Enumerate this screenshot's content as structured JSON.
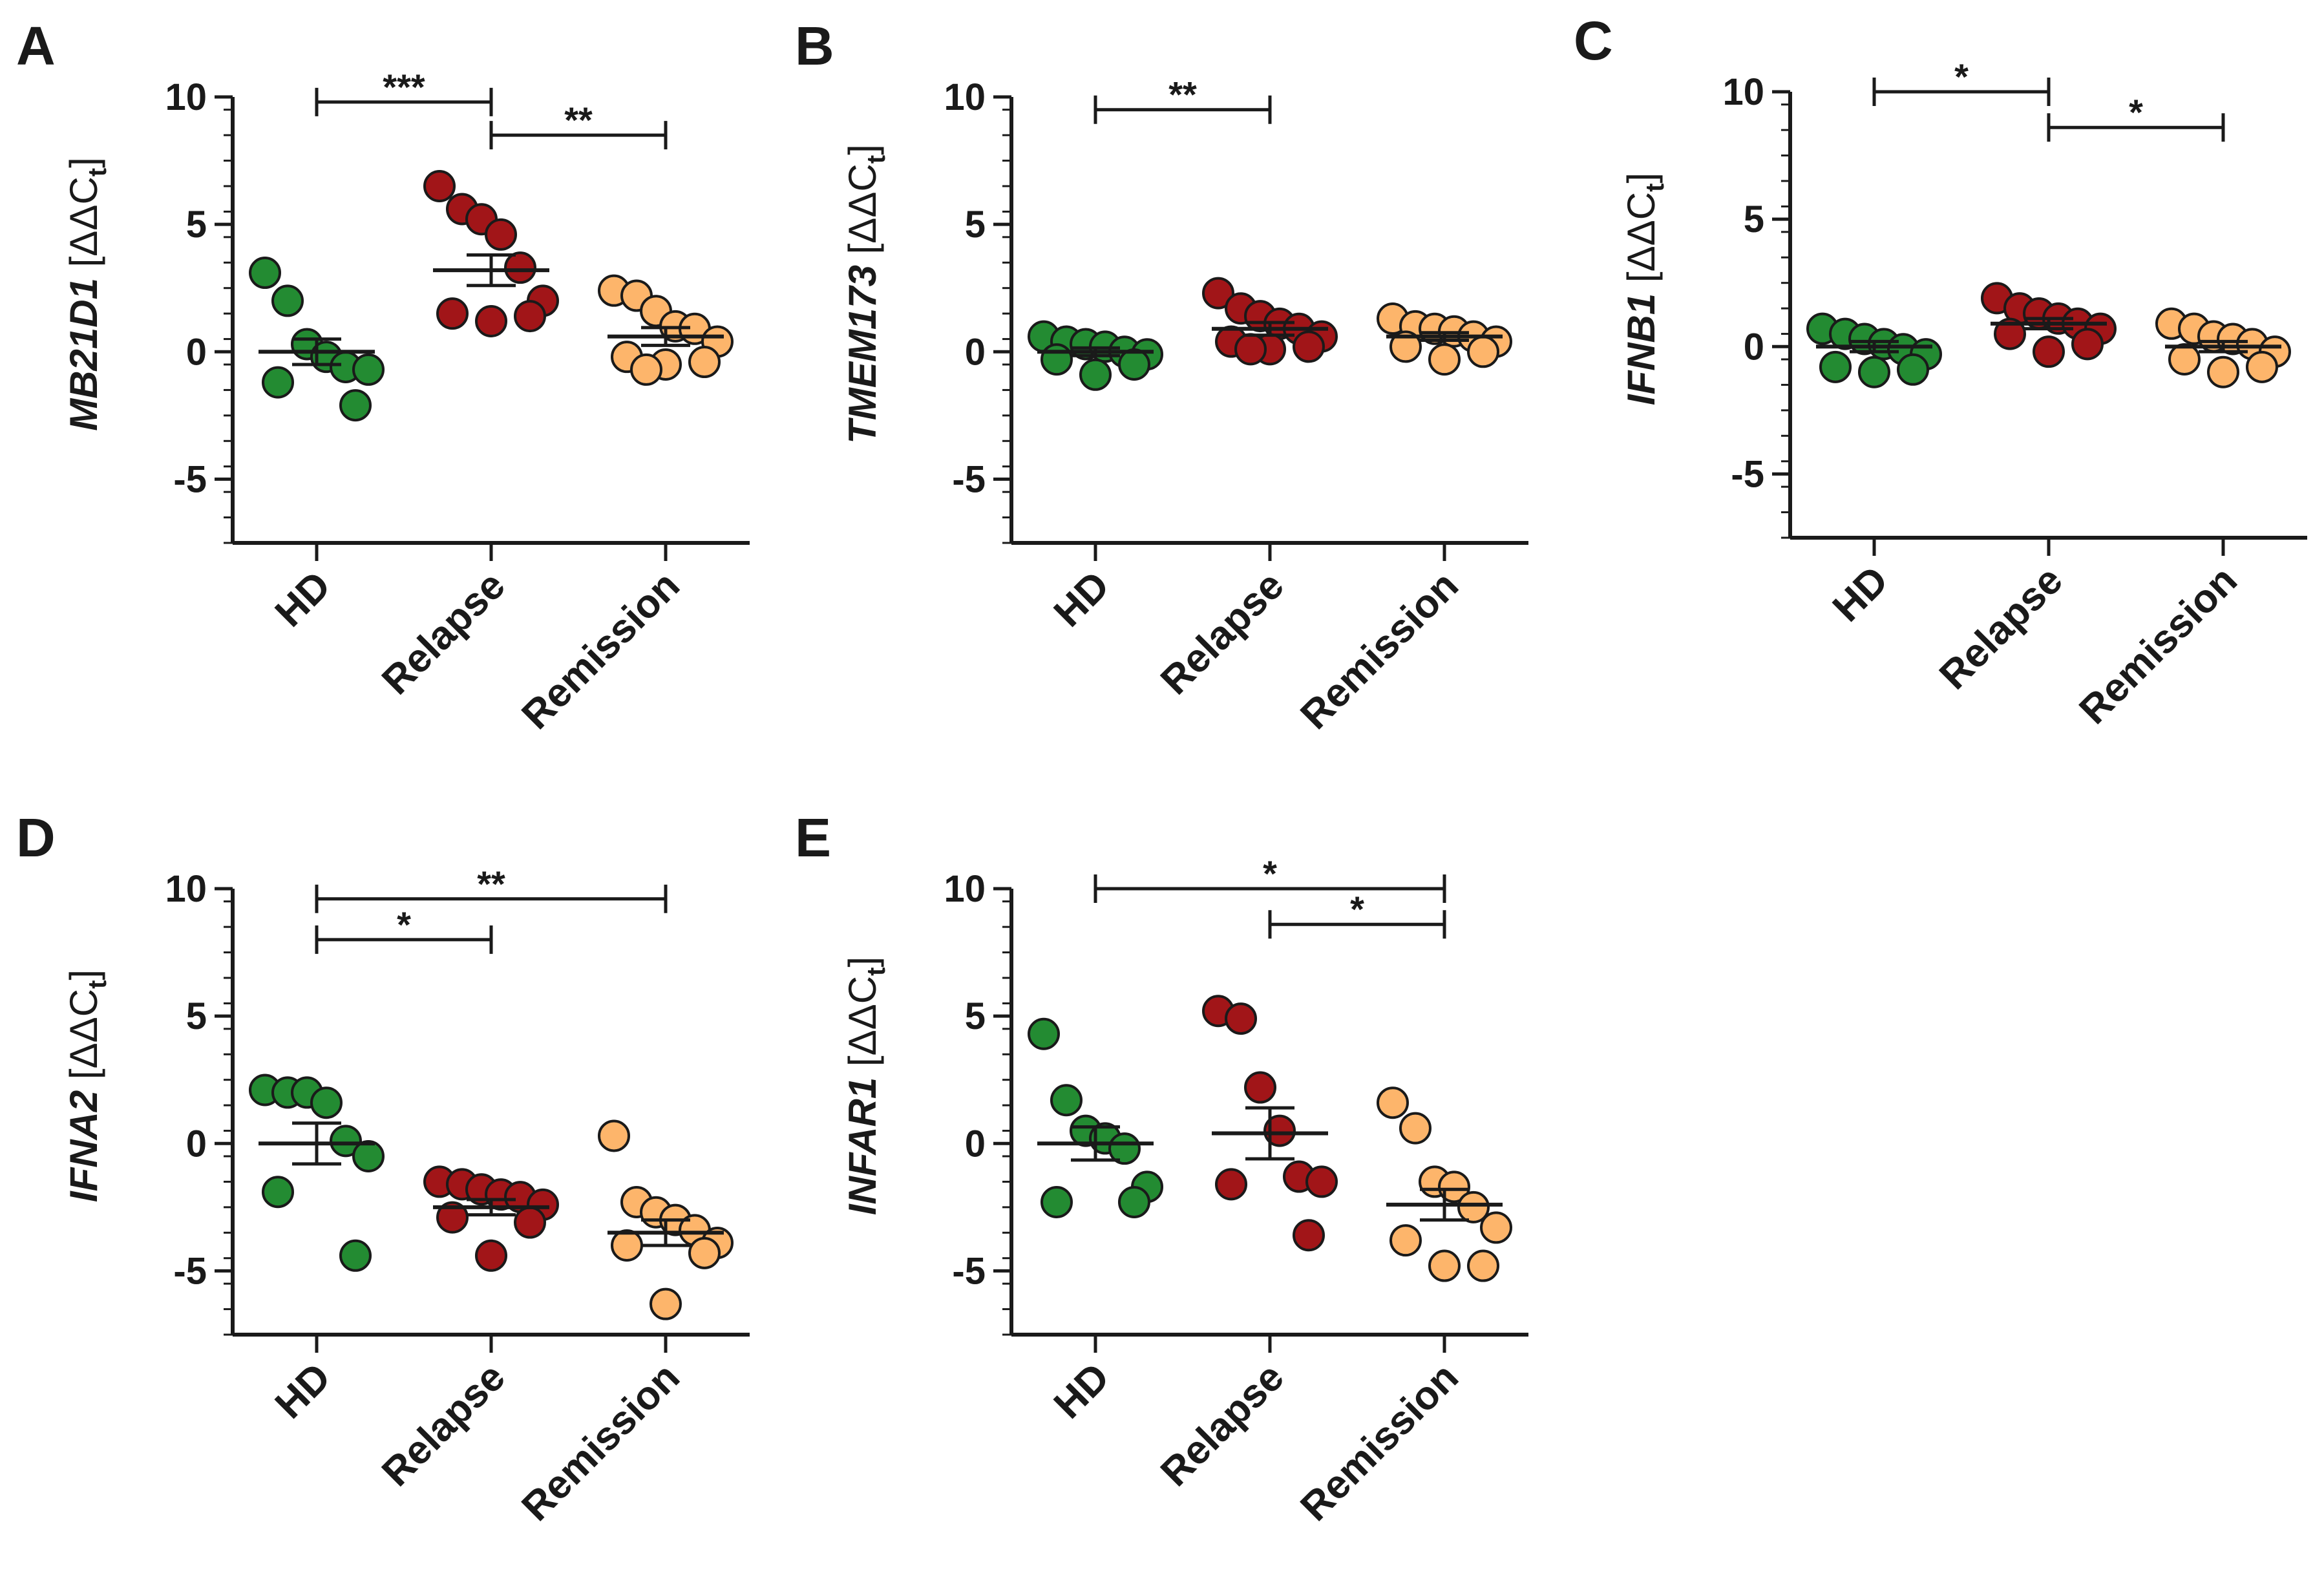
{
  "colors": {
    "HD": "#238b32",
    "Relapse": "#a11518",
    "Remission": "#fdb56b",
    "axis": "#1a1a1a"
  },
  "chart_data": [
    {
      "type": "scatter",
      "panel": "A",
      "ylabel": "MB21D1",
      "ylabel_unit_prefix": "[",
      "ylabel_unit_symbol": "ΔΔC",
      "ylabel_unit_sub": "t",
      "ylabel_unit_suffix": "]",
      "categories": [
        "HD",
        "Relapse",
        "Remission"
      ],
      "ylim": [
        -7.5,
        10
      ],
      "yticks": [
        -5,
        0,
        5,
        10
      ],
      "series": [
        {
          "name": "HD",
          "values": [
            3.1,
            2.0,
            0.3,
            -0.2,
            -0.6,
            -0.7,
            -1.2,
            -2.1
          ],
          "mean": 0.0,
          "sem": 0.5
        },
        {
          "name": "Relapse",
          "values": [
            6.5,
            5.6,
            5.2,
            4.6,
            3.3,
            2.0,
            1.5,
            1.4,
            1.2
          ],
          "mean": 3.2,
          "sem": 0.6
        },
        {
          "name": "Remission",
          "values": [
            2.4,
            2.2,
            1.6,
            1.0,
            0.9,
            0.4,
            -0.2,
            -0.4,
            -0.5,
            -0.7
          ],
          "mean": 0.6,
          "sem": 0.35
        }
      ],
      "significance": [
        {
          "from": 0,
          "to": 1,
          "y": 9.8,
          "label": "***"
        },
        {
          "from": 1,
          "to": 2,
          "y": 8.5,
          "label": "**"
        }
      ]
    },
    {
      "type": "scatter",
      "panel": "B",
      "ylabel": "TMEM173",
      "ylabel_unit_prefix": "[",
      "ylabel_unit_symbol": "ΔΔC",
      "ylabel_unit_sub": "t",
      "ylabel_unit_suffix": "]",
      "categories": [
        "HD",
        "Relapse",
        "Remission"
      ],
      "ylim": [
        -7.5,
        10
      ],
      "yticks": [
        -5,
        0,
        5,
        10
      ],
      "series": [
        {
          "name": "HD",
          "values": [
            0.6,
            0.4,
            0.3,
            0.2,
            0.0,
            -0.1,
            -0.3,
            -0.5,
            -0.9
          ],
          "mean": 0.0,
          "sem": 0.15
        },
        {
          "name": "Relapse",
          "values": [
            2.3,
            1.7,
            1.4,
            1.1,
            0.9,
            0.6,
            0.4,
            0.2,
            0.1,
            0.1
          ],
          "mean": 0.9,
          "sem": 0.25
        },
        {
          "name": "Remission",
          "values": [
            1.3,
            1.0,
            0.9,
            0.8,
            0.6,
            0.4,
            0.2,
            0.0,
            -0.3
          ],
          "mean": 0.6,
          "sem": 0.15
        }
      ],
      "significance": [
        {
          "from": 0,
          "to": 1,
          "y": 9.5,
          "label": "**"
        }
      ]
    },
    {
      "type": "scatter",
      "panel": "C",
      "ylabel": "IFNB1",
      "ylabel_unit_prefix": "[",
      "ylabel_unit_symbol": "ΔΔC",
      "ylabel_unit_sub": "t",
      "ylabel_unit_suffix": "]",
      "categories": [
        "HD",
        "Relapse",
        "Remission"
      ],
      "ylim": [
        -7.5,
        10
      ],
      "yticks": [
        -5,
        0,
        5,
        10
      ],
      "series": [
        {
          "name": "HD",
          "values": [
            0.7,
            0.5,
            0.3,
            0.1,
            -0.1,
            -0.3,
            -0.8,
            -0.9,
            -1.0
          ],
          "mean": 0.0,
          "sem": 0.2
        },
        {
          "name": "Relapse",
          "values": [
            1.9,
            1.5,
            1.3,
            1.1,
            0.9,
            0.7,
            0.5,
            0.1,
            -0.2
          ],
          "mean": 0.9,
          "sem": 0.2
        },
        {
          "name": "Remission",
          "values": [
            0.9,
            0.7,
            0.4,
            0.3,
            0.1,
            -0.2,
            -0.5,
            -0.8,
            -1.0
          ],
          "mean": 0.0,
          "sem": 0.2
        }
      ],
      "significance": [
        {
          "from": 0,
          "to": 1,
          "y": 10.0,
          "label": "*"
        },
        {
          "from": 1,
          "to": 2,
          "y": 8.6,
          "label": "*"
        }
      ]
    },
    {
      "type": "scatter",
      "panel": "D",
      "ylabel": "IFNA2",
      "ylabel_unit_prefix": "[",
      "ylabel_unit_symbol": "ΔΔC",
      "ylabel_unit_sub": "t",
      "ylabel_unit_suffix": "]",
      "categories": [
        "HD",
        "Relapse",
        "Remission"
      ],
      "ylim": [
        -7.5,
        10
      ],
      "yticks": [
        -5,
        0,
        5,
        10
      ],
      "series": [
        {
          "name": "HD",
          "values": [
            2.1,
            2.0,
            2.0,
            1.6,
            0.1,
            -0.5,
            -1.9,
            -4.4
          ],
          "mean": 0.0,
          "sem": 0.8
        },
        {
          "name": "Relapse",
          "values": [
            -1.5,
            -1.6,
            -1.8,
            -2.0,
            -2.1,
            -2.4,
            -2.9,
            -3.1,
            -4.4
          ],
          "mean": -2.5,
          "sem": 0.3
        },
        {
          "name": "Remission",
          "values": [
            0.3,
            -2.3,
            -2.7,
            -3.0,
            -3.4,
            -3.9,
            -4.0,
            -4.3,
            -6.3
          ],
          "mean": -3.5,
          "sem": 0.5
        }
      ],
      "significance": [
        {
          "from": 0,
          "to": 2,
          "y": 9.6,
          "label": "**"
        },
        {
          "from": 0,
          "to": 1,
          "y": 8.0,
          "label": "*"
        }
      ]
    },
    {
      "type": "scatter",
      "panel": "E",
      "ylabel": "INFAR1",
      "ylabel_unit_prefix": "[",
      "ylabel_unit_symbol": "ΔΔC",
      "ylabel_unit_sub": "t",
      "ylabel_unit_suffix": "]",
      "categories": [
        "HD",
        "Relapse",
        "Remission"
      ],
      "ylim": [
        -7.5,
        10
      ],
      "yticks": [
        -5,
        0,
        5,
        10
      ],
      "series": [
        {
          "name": "HD",
          "values": [
            4.3,
            1.7,
            0.5,
            0.2,
            -0.2,
            -1.7,
            -2.3,
            -2.3
          ],
          "mean": 0.0,
          "sem": 0.65
        },
        {
          "name": "Relapse",
          "values": [
            5.2,
            4.9,
            2.2,
            0.5,
            -1.3,
            -1.5,
            -1.6,
            -3.6
          ],
          "mean": 0.4,
          "sem": 1.0
        },
        {
          "name": "Remission",
          "values": [
            1.6,
            0.6,
            -1.5,
            -1.7,
            -2.5,
            -3.3,
            -3.8,
            -4.8,
            -4.8
          ],
          "mean": -2.4,
          "sem": 0.6
        }
      ],
      "significance": [
        {
          "from": 0,
          "to": 2,
          "y": 10.0,
          "label": "*"
        },
        {
          "from": 1,
          "to": 2,
          "y": 8.6,
          "label": "*"
        }
      ]
    }
  ]
}
